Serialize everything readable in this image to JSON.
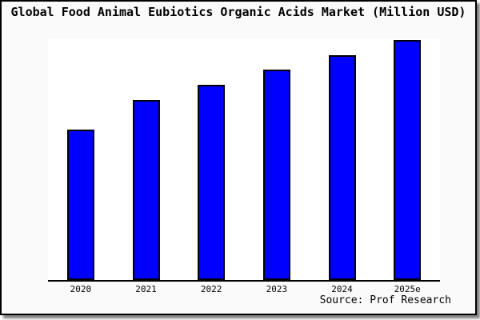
{
  "title": "Global Food Animal Eubiotics Organic Acids Market (Million USD)",
  "source_note": "Source: Prof Research",
  "colors": {
    "bar_fill": "#0000ff",
    "bar_border": "#000000",
    "frame_background": "#fafafa",
    "plot_background": "#ffffff",
    "axis": "#000000",
    "text": "#000000"
  },
  "chart_data": {
    "type": "bar",
    "title": "Global Food Animal Eubiotics Organic Acids Market (Million USD)",
    "categories": [
      "2020",
      "2021",
      "2022",
      "2023",
      "2024",
      "2025e"
    ],
    "values": [
      62.7,
      75.0,
      81.3,
      87.7,
      93.7,
      100.0
    ],
    "values_note": "relative bar heights in percent of tallest bar; chart shows no y-axis scale",
    "xlabel": "",
    "ylabel": "",
    "ylim": [
      0,
      100
    ],
    "grid": false,
    "legend": false,
    "bar_color": "#0000ff",
    "source": "Source: Prof Research"
  }
}
